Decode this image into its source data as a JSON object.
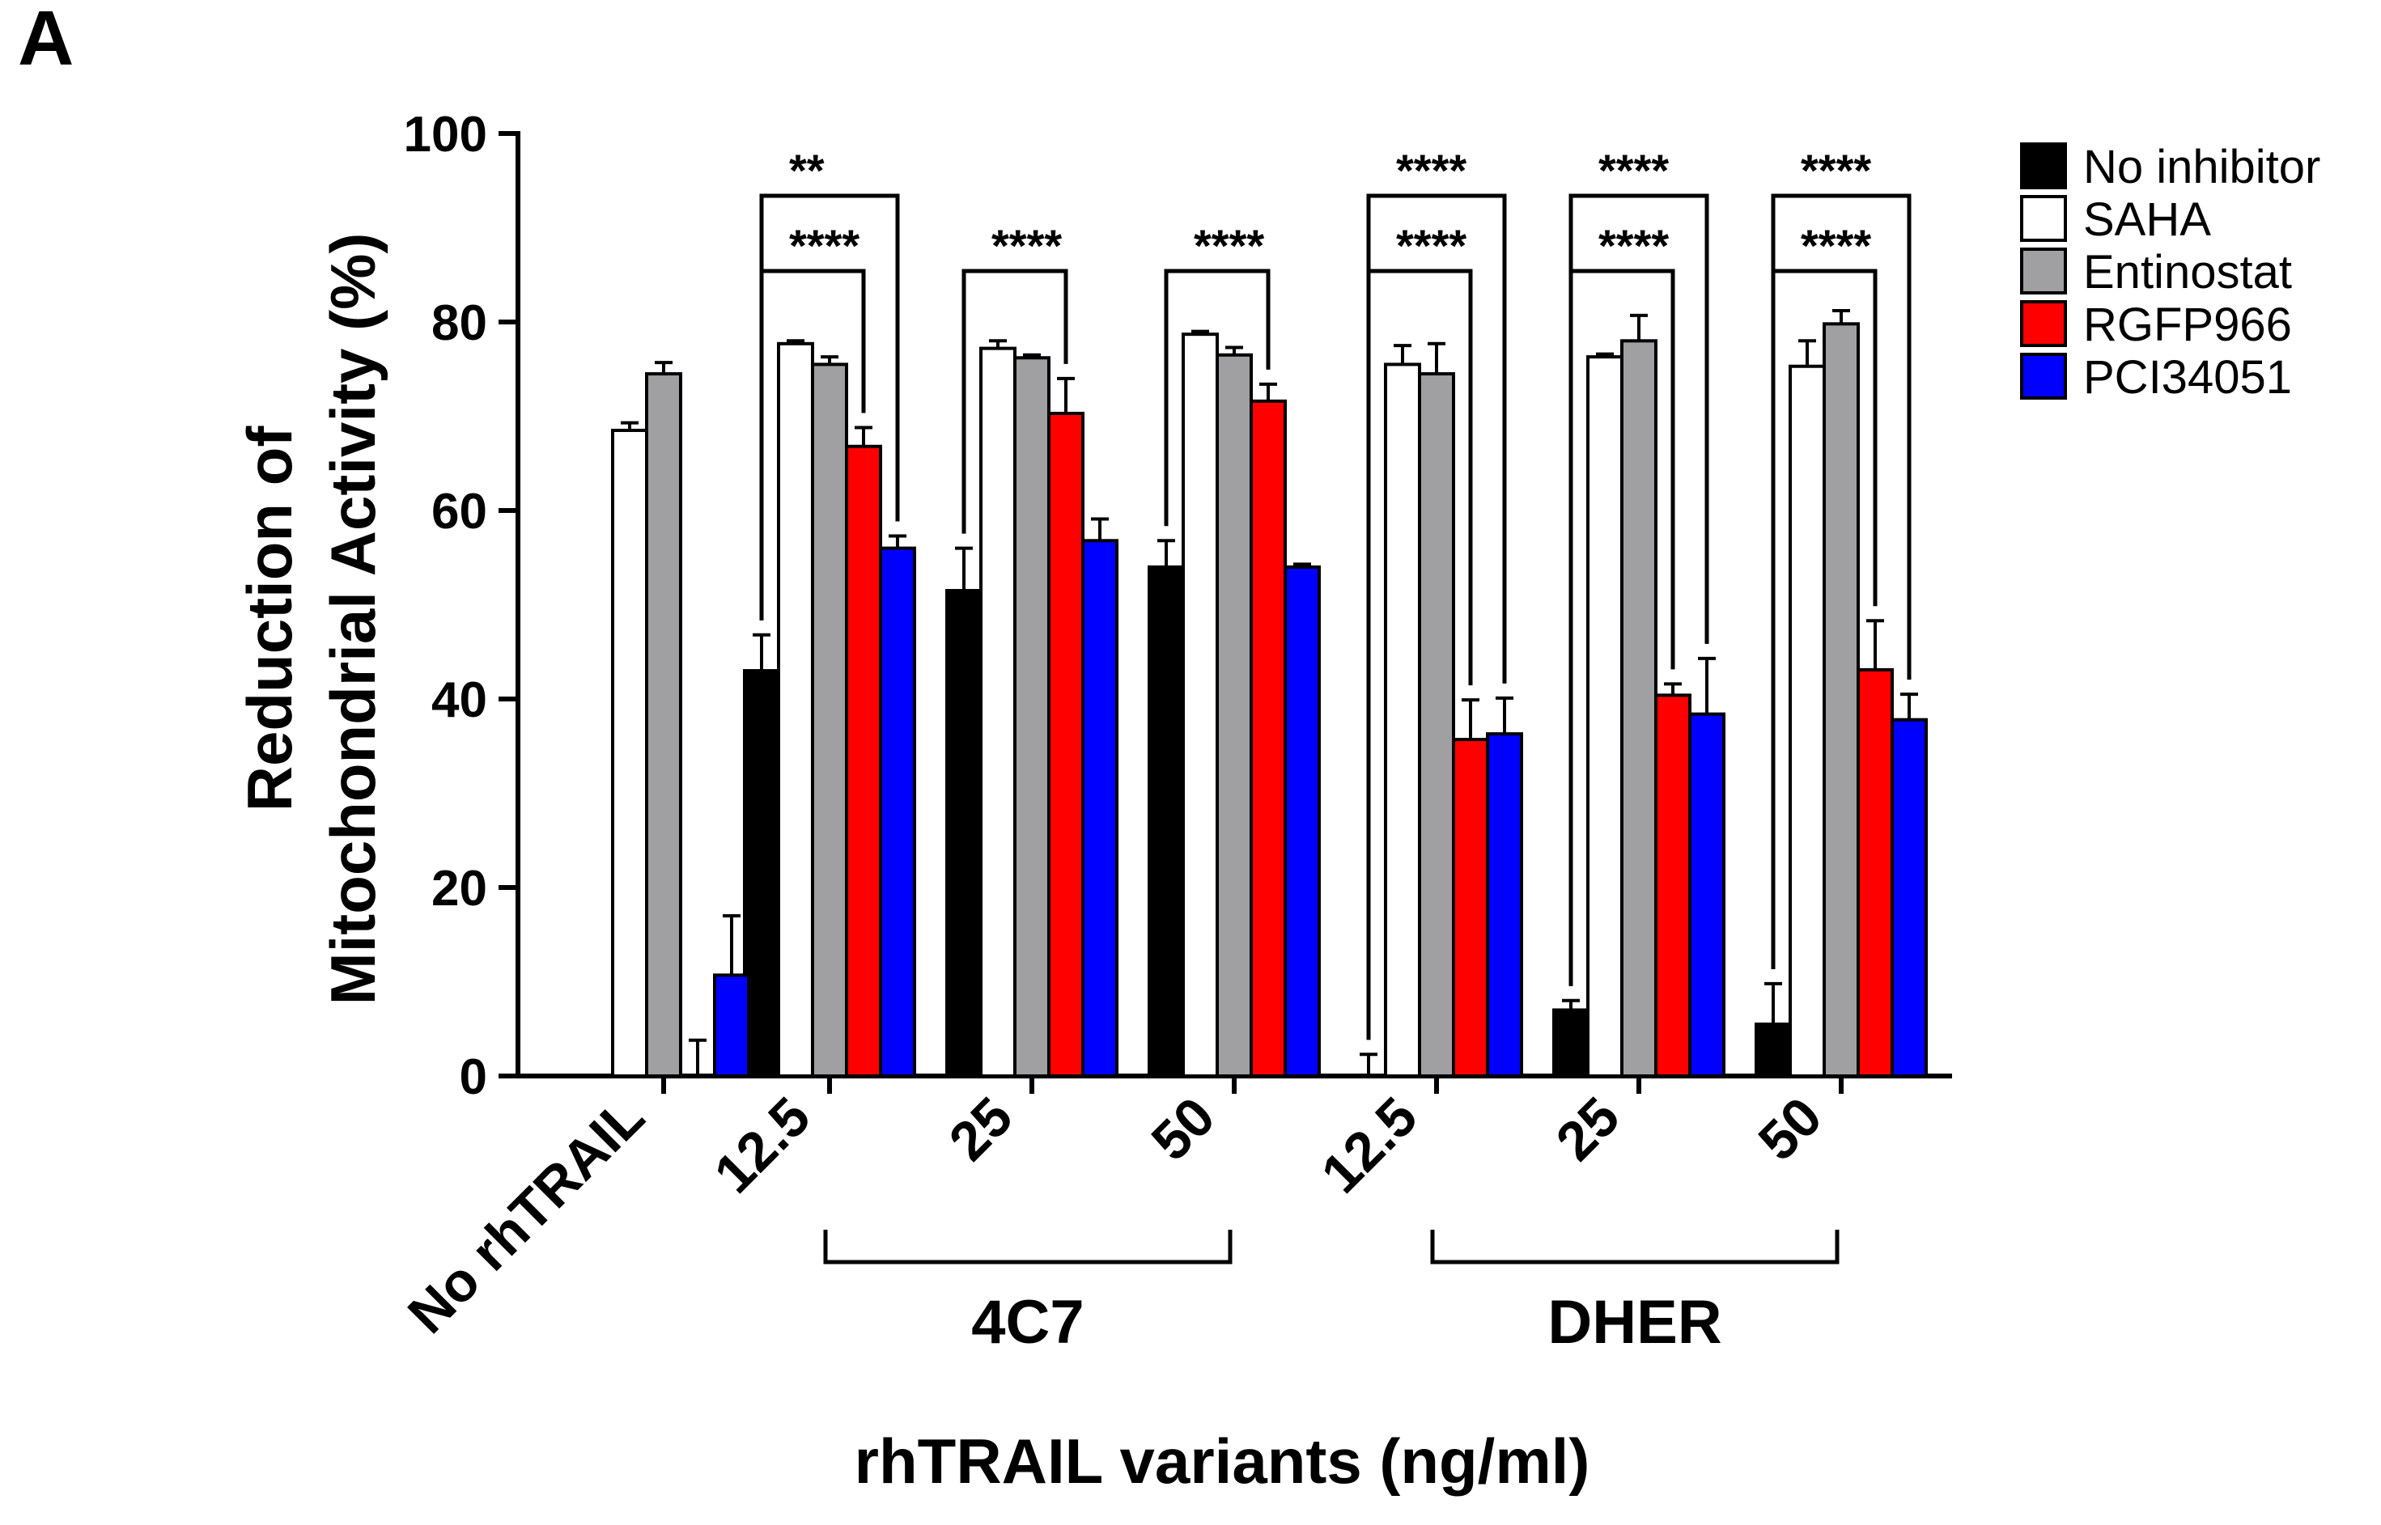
{
  "panel_label": "A",
  "chart_data": {
    "type": "bar",
    "ylabel_line1": "Reduction of",
    "ylabel_line2": "Mitochondrial Activity (%)",
    "xlabel": "rhTRAIL variants (ng/ml)",
    "ylim": [
      0,
      100
    ],
    "yticks": [
      "0",
      "20",
      "40",
      "60",
      "80",
      "100"
    ],
    "categories": [
      "No rhTRAIL",
      "12.5",
      "25",
      "50",
      "12.5",
      "25",
      "50"
    ],
    "group_labels": [
      "4C7",
      "DHER"
    ],
    "series": [
      {
        "name": "No inhibitor",
        "color": "#000000",
        "values": [
          0,
          43,
          51.5,
          54,
          0,
          7,
          5.5
        ],
        "errors": [
          0,
          3.8,
          4.5,
          2.8,
          2.3,
          1,
          4.3
        ]
      },
      {
        "name": "SAHA",
        "color": "#ffffff",
        "values": [
          68.5,
          77.7,
          77.2,
          78.7,
          75.5,
          76.3,
          75.3
        ],
        "errors": [
          0.8,
          0.3,
          0.8,
          0.3,
          2,
          0.3,
          2.7
        ]
      },
      {
        "name": "Entinostat",
        "color": "#a0a0a3",
        "values": [
          74.5,
          75.5,
          76.2,
          76.5,
          74.5,
          78,
          79.8
        ],
        "errors": [
          1.2,
          0.8,
          0.3,
          0.8,
          3.2,
          2.7,
          1.4
        ]
      },
      {
        "name": "RGFP966",
        "color": "#ff0000",
        "values": [
          0,
          66.8,
          70.3,
          71.6,
          35.7,
          40.4,
          43.1
        ],
        "errors": [
          3.8,
          2,
          3.7,
          1.8,
          4.2,
          1.2,
          5.2
        ]
      },
      {
        "name": "PCI34051",
        "color": "#0000ff",
        "values": [
          10.7,
          56,
          56.8,
          54,
          36.3,
          38.4,
          37.8
        ],
        "errors": [
          6.3,
          1.3,
          2.3,
          0.3,
          3.8,
          5.9,
          2.7
        ]
      }
    ],
    "significance": [
      {
        "label": "**",
        "group": 1,
        "from_series": 0,
        "to_series": 4,
        "level": 1
      },
      {
        "label": "****",
        "group": 1,
        "from_series": 0,
        "to_series": 3,
        "level": 2
      },
      {
        "label": "****",
        "group": 2,
        "from_series": 0,
        "to_series": 3,
        "level": 2
      },
      {
        "label": "****",
        "group": 3,
        "from_series": 0,
        "to_series": 3,
        "level": 2
      },
      {
        "label": "****",
        "group": 4,
        "from_series": 0,
        "to_series": 4,
        "level": 1
      },
      {
        "label": "****",
        "group": 4,
        "from_series": 0,
        "to_series": 3,
        "level": 2
      },
      {
        "label": "****",
        "group": 5,
        "from_series": 0,
        "to_series": 4,
        "level": 1
      },
      {
        "label": "****",
        "group": 5,
        "from_series": 0,
        "to_series": 3,
        "level": 2
      },
      {
        "label": "****",
        "group": 6,
        "from_series": 0,
        "to_series": 4,
        "level": 1
      },
      {
        "label": "****",
        "group": 6,
        "from_series": 0,
        "to_series": 3,
        "level": 2
      }
    ],
    "legend_position": "top-right"
  }
}
